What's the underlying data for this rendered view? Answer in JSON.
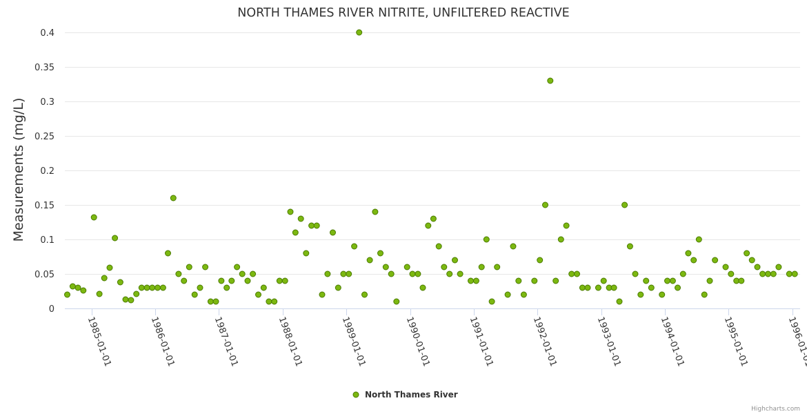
{
  "chart_data": {
    "type": "scatter",
    "title": "NORTH THAMES RIVER NITRITE, UNFILTERED REACTIVE",
    "xlabel": "",
    "ylabel": "Measurements (mg/L)",
    "ylim": [
      0,
      0.4
    ],
    "yticks": [
      "0",
      "0.05",
      "0.1",
      "0.15",
      "0.2",
      "0.25",
      "0.3",
      "0.35",
      "0.4"
    ],
    "xlim": [
      "1984-08-01",
      "1996-02-15"
    ],
    "xticks": [
      "1985-01-01",
      "1986-01-01",
      "1987-01-01",
      "1988-01-01",
      "1989-01-01",
      "1990-01-01",
      "1991-01-01",
      "1992-01-01",
      "1993-01-01",
      "1994-01-01",
      "1995-01-01",
      "1996-01-01"
    ],
    "grid": true,
    "legend_position": "bottom-center",
    "colors": {
      "marker_fill": "#7cb811",
      "marker_stroke": "#4a7a00"
    },
    "series": [
      {
        "name": "North Thames River",
        "points": [
          [
            "1984-08-15",
            0.02
          ],
          [
            "1984-09-15",
            0.032
          ],
          [
            "1984-10-15",
            0.03
          ],
          [
            "1984-11-15",
            0.026
          ],
          [
            "1985-01-15",
            0.132
          ],
          [
            "1985-02-15",
            0.021
          ],
          [
            "1985-03-15",
            0.044
          ],
          [
            "1985-04-15",
            0.059
          ],
          [
            "1985-05-15",
            0.102
          ],
          [
            "1985-06-15",
            0.038
          ],
          [
            "1985-07-15",
            0.013
          ],
          [
            "1985-08-15",
            0.012
          ],
          [
            "1985-09-15",
            0.021
          ],
          [
            "1985-10-15",
            0.03
          ],
          [
            "1985-11-15",
            0.03
          ],
          [
            "1985-12-15",
            0.03
          ],
          [
            "1986-01-15",
            0.03
          ],
          [
            "1986-02-15",
            0.03
          ],
          [
            "1986-03-15",
            0.08
          ],
          [
            "1986-04-15",
            0.16
          ],
          [
            "1986-05-15",
            0.05
          ],
          [
            "1986-06-15",
            0.04
          ],
          [
            "1986-07-15",
            0.06
          ],
          [
            "1986-08-15",
            0.02
          ],
          [
            "1986-09-15",
            0.03
          ],
          [
            "1986-10-15",
            0.06
          ],
          [
            "1986-11-15",
            0.01
          ],
          [
            "1986-12-15",
            0.01
          ],
          [
            "1987-01-15",
            0.04
          ],
          [
            "1987-02-15",
            0.03
          ],
          [
            "1987-03-15",
            0.04
          ],
          [
            "1987-04-15",
            0.06
          ],
          [
            "1987-05-15",
            0.05
          ],
          [
            "1987-06-15",
            0.04
          ],
          [
            "1987-07-15",
            0.05
          ],
          [
            "1987-08-15",
            0.02
          ],
          [
            "1987-09-15",
            0.03
          ],
          [
            "1987-10-15",
            0.01
          ],
          [
            "1987-11-15",
            0.01
          ],
          [
            "1987-12-15",
            0.04
          ],
          [
            "1988-01-15",
            0.04
          ],
          [
            "1988-02-15",
            0.14
          ],
          [
            "1988-03-15",
            0.11
          ],
          [
            "1988-04-15",
            0.13
          ],
          [
            "1988-05-15",
            0.08
          ],
          [
            "1988-06-15",
            0.12
          ],
          [
            "1988-07-15",
            0.12
          ],
          [
            "1988-08-15",
            0.02
          ],
          [
            "1988-09-15",
            0.05
          ],
          [
            "1988-10-15",
            0.11
          ],
          [
            "1988-11-15",
            0.03
          ],
          [
            "1988-12-15",
            0.05
          ],
          [
            "1989-01-15",
            0.05
          ],
          [
            "1989-02-15",
            0.09
          ],
          [
            "1989-03-15",
            0.4
          ],
          [
            "1989-04-15",
            0.02
          ],
          [
            "1989-05-15",
            0.07
          ],
          [
            "1989-06-15",
            0.14
          ],
          [
            "1989-07-15",
            0.08
          ],
          [
            "1989-08-15",
            0.06
          ],
          [
            "1989-09-15",
            0.05
          ],
          [
            "1989-10-15",
            0.01
          ],
          [
            "1989-12-15",
            0.06
          ],
          [
            "1990-01-15",
            0.05
          ],
          [
            "1990-02-15",
            0.05
          ],
          [
            "1990-03-15",
            0.03
          ],
          [
            "1990-04-15",
            0.12
          ],
          [
            "1990-05-15",
            0.13
          ],
          [
            "1990-06-15",
            0.09
          ],
          [
            "1990-07-15",
            0.06
          ],
          [
            "1990-08-15",
            0.05
          ],
          [
            "1990-09-15",
            0.07
          ],
          [
            "1990-10-15",
            0.05
          ],
          [
            "1990-12-15",
            0.04
          ],
          [
            "1991-01-15",
            0.04
          ],
          [
            "1991-02-15",
            0.06
          ],
          [
            "1991-03-15",
            0.1
          ],
          [
            "1991-04-15",
            0.01
          ],
          [
            "1991-05-15",
            0.06
          ],
          [
            "1991-07-15",
            0.02
          ],
          [
            "1991-08-15",
            0.09
          ],
          [
            "1991-09-15",
            0.04
          ],
          [
            "1991-10-15",
            0.02
          ],
          [
            "1991-12-15",
            0.04
          ],
          [
            "1992-01-15",
            0.07
          ],
          [
            "1992-02-15",
            0.15
          ],
          [
            "1992-03-15",
            0.33
          ],
          [
            "1992-04-15",
            0.04
          ],
          [
            "1992-05-15",
            0.1
          ],
          [
            "1992-06-15",
            0.12
          ],
          [
            "1992-07-15",
            0.05
          ],
          [
            "1992-08-15",
            0.05
          ],
          [
            "1992-09-15",
            0.03
          ],
          [
            "1992-10-15",
            0.03
          ],
          [
            "1992-12-15",
            0.03
          ],
          [
            "1993-01-15",
            0.04
          ],
          [
            "1993-02-15",
            0.03
          ],
          [
            "1993-03-15",
            0.03
          ],
          [
            "1993-04-15",
            0.01
          ],
          [
            "1993-05-15",
            0.15
          ],
          [
            "1993-06-15",
            0.09
          ],
          [
            "1993-07-15",
            0.05
          ],
          [
            "1993-08-15",
            0.02
          ],
          [
            "1993-09-15",
            0.04
          ],
          [
            "1993-10-15",
            0.03
          ],
          [
            "1993-12-15",
            0.02
          ],
          [
            "1994-01-15",
            0.04
          ],
          [
            "1994-02-15",
            0.04
          ],
          [
            "1994-03-15",
            0.03
          ],
          [
            "1994-04-15",
            0.05
          ],
          [
            "1994-05-15",
            0.08
          ],
          [
            "1994-06-15",
            0.07
          ],
          [
            "1994-07-15",
            0.1
          ],
          [
            "1994-08-15",
            0.02
          ],
          [
            "1994-09-15",
            0.04
          ],
          [
            "1994-10-15",
            0.07
          ],
          [
            "1994-12-15",
            0.06
          ],
          [
            "1995-01-15",
            0.05
          ],
          [
            "1995-02-15",
            0.04
          ],
          [
            "1995-03-15",
            0.04
          ],
          [
            "1995-04-15",
            0.08
          ],
          [
            "1995-05-15",
            0.07
          ],
          [
            "1995-06-15",
            0.06
          ],
          [
            "1995-07-15",
            0.05
          ],
          [
            "1995-08-15",
            0.05
          ],
          [
            "1995-09-15",
            0.05
          ],
          [
            "1995-10-15",
            0.06
          ],
          [
            "1995-12-15",
            0.05
          ],
          [
            "1996-01-15",
            0.05
          ]
        ]
      }
    ],
    "credits": "Highcharts.com"
  }
}
